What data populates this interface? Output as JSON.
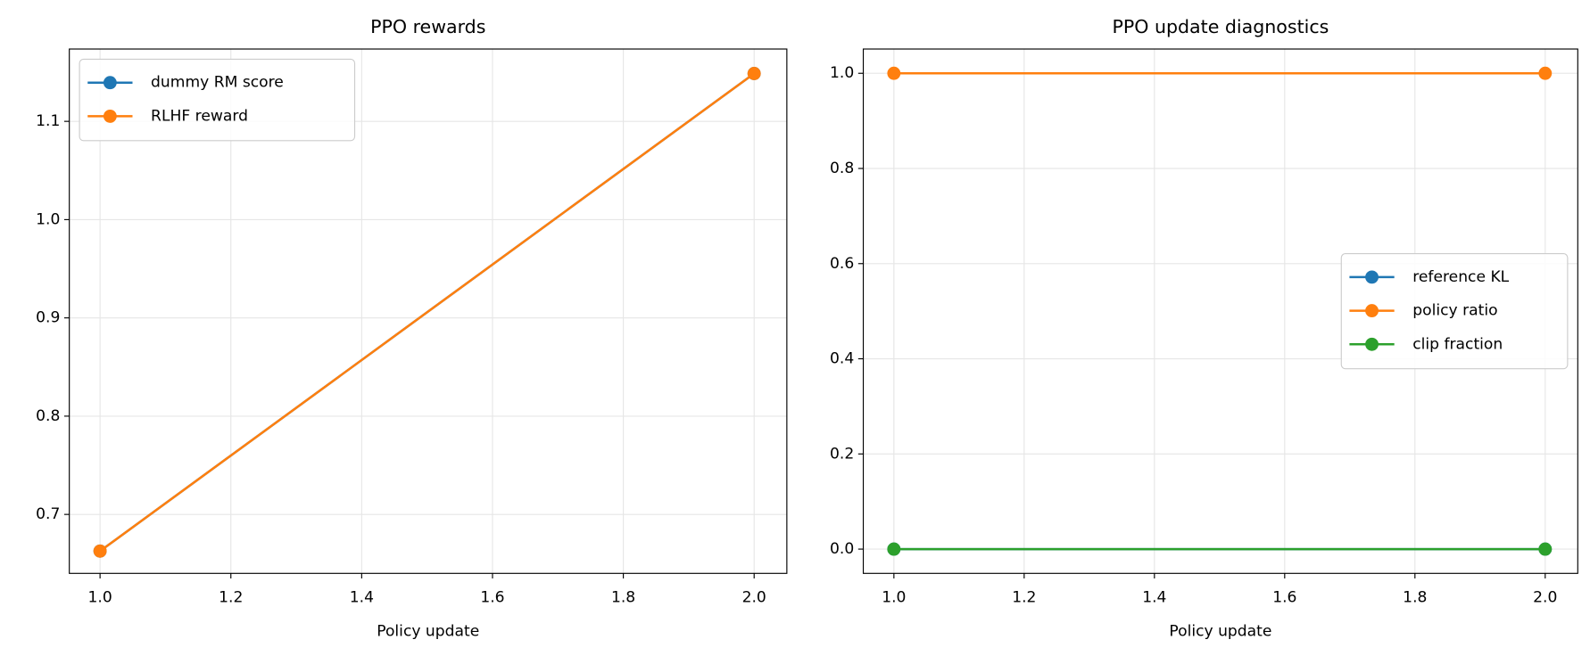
{
  "chart_data": [
    {
      "type": "line",
      "title": "PPO rewards",
      "x_label": "Policy update",
      "x": [
        1,
        2
      ],
      "series": [
        {
          "name": "dummy RM score",
          "color": "#1f77b4",
          "values": [
            0.6627,
            1.1487
          ]
        },
        {
          "name": "RLHF reward",
          "color": "#ff7f0e",
          "values": [
            0.6627,
            1.1487
          ]
        }
      ],
      "xlim": [
        0.953,
        2.05
      ],
      "ylim": [
        0.64,
        1.1736
      ],
      "xticks": [
        {
          "value": 1,
          "label": "1.0"
        },
        1.2,
        1.4,
        1.6,
        1.8,
        {
          "value": 2,
          "label": "2.0"
        }
      ],
      "yticks": [
        0.7,
        0.8,
        0.9,
        {
          "value": 1,
          "label": "1.0"
        },
        1.1
      ],
      "grid": true,
      "legend": "upper-left"
    },
    {
      "type": "line",
      "title": "PPO update diagnostics",
      "x_label": "Policy update",
      "x": [
        1,
        2
      ],
      "series": [
        {
          "name": "reference KL",
          "color": "#1f77b4",
          "values": [
            0,
            0
          ]
        },
        {
          "name": "policy ratio",
          "color": "#ff7f0e",
          "values": [
            1,
            1
          ]
        },
        {
          "name": "clip fraction",
          "color": "#2ca02c",
          "values": [
            0,
            0
          ]
        }
      ],
      "xlim": [
        0.953,
        2.05
      ],
      "ylim": [
        -0.051,
        1.051
      ],
      "xticks": [
        {
          "value": 1,
          "label": "1.0"
        },
        1.2,
        1.4,
        1.6,
        1.8,
        {
          "value": 2,
          "label": "2.0"
        }
      ],
      "yticks": [
        {
          "value": 0,
          "label": "0.0"
        },
        0.2,
        0.4,
        0.6,
        0.8,
        {
          "value": 1,
          "label": "1.0"
        }
      ],
      "grid": true,
      "legend": "center-right"
    }
  ]
}
